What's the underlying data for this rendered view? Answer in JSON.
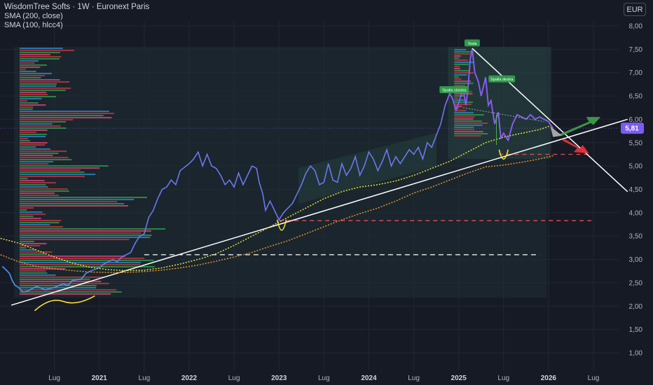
{
  "header": {
    "title": "WisdomTree Softs · 1W · Euronext Paris",
    "indicators": [
      "SMA (200, close)",
      "SMA (100, hlcc4)"
    ]
  },
  "currency_button": "EUR",
  "chart_data": {
    "type": "line",
    "symbol": "WisdomTree Softs",
    "interval": "1W",
    "exchange": "Euronext Paris",
    "currency": "EUR",
    "ylim": [
      0.62,
      8.3
    ],
    "yticks": [
      "8,00",
      "7,50",
      "7,00",
      "6,50",
      "6,00",
      "5,50",
      "5,00",
      "4,50",
      "4,00",
      "3,50",
      "3,00",
      "2,50",
      "2,00",
      "1,50",
      "1,00"
    ],
    "ytick_values": [
      8,
      7.5,
      7,
      6.5,
      6,
      5.5,
      5,
      4.5,
      4,
      3.5,
      3,
      2.5,
      2,
      1.5,
      1
    ],
    "xlim": [
      2019.9,
      2026.8
    ],
    "xticks": [
      {
        "label": "Lug",
        "t": 2020.5,
        "year": false
      },
      {
        "label": "2021",
        "t": 2021.0,
        "year": true
      },
      {
        "label": "Lug",
        "t": 2021.5,
        "year": false
      },
      {
        "label": "2022",
        "t": 2022.0,
        "year": true
      },
      {
        "label": "Lug",
        "t": 2022.5,
        "year": false
      },
      {
        "label": "2023",
        "t": 2023.0,
        "year": true
      },
      {
        "label": "Lug",
        "t": 2023.5,
        "year": false
      },
      {
        "label": "2024",
        "t": 2024.0,
        "year": true
      },
      {
        "label": "Lug",
        "t": 2024.5,
        "year": false
      },
      {
        "label": "2025",
        "t": 2025.0,
        "year": true
      },
      {
        "label": "Lug",
        "t": 2025.5,
        "year": false
      },
      {
        "label": "2026",
        "t": 2026.0,
        "year": true
      },
      {
        "label": "Lug",
        "t": 2026.5,
        "year": false
      }
    ],
    "current_price": "5,81",
    "current_value": 5.81,
    "series": [
      {
        "name": "WisdomTree Softs",
        "color": "#6a78ee",
        "points": [
          [
            2019.92,
            2.85
          ],
          [
            2019.95,
            2.8
          ],
          [
            2020.0,
            2.7
          ],
          [
            2020.03,
            2.55
          ],
          [
            2020.06,
            2.45
          ],
          [
            2020.1,
            2.4
          ],
          [
            2020.15,
            2.3
          ],
          [
            2020.2,
            2.32
          ],
          [
            2020.3,
            2.42
          ],
          [
            2020.4,
            2.35
          ],
          [
            2020.5,
            2.4
          ],
          [
            2020.6,
            2.48
          ],
          [
            2020.65,
            2.44
          ],
          [
            2020.7,
            2.55
          ],
          [
            2020.8,
            2.58
          ],
          [
            2020.85,
            2.7
          ],
          [
            2020.9,
            2.75
          ],
          [
            2021.0,
            2.82
          ],
          [
            2021.05,
            2.9
          ],
          [
            2021.1,
            2.95
          ],
          [
            2021.15,
            3.0
          ],
          [
            2021.2,
            2.95
          ],
          [
            2021.25,
            3.05
          ],
          [
            2021.35,
            3.15
          ],
          [
            2021.4,
            3.35
          ],
          [
            2021.45,
            3.5
          ],
          [
            2021.5,
            3.55
          ],
          [
            2021.55,
            3.9
          ],
          [
            2021.6,
            4.05
          ],
          [
            2021.65,
            4.3
          ],
          [
            2021.7,
            4.5
          ],
          [
            2021.75,
            4.55
          ],
          [
            2021.8,
            4.7
          ],
          [
            2021.85,
            4.6
          ],
          [
            2021.9,
            4.9
          ],
          [
            2022.0,
            5.05
          ],
          [
            2022.05,
            5.15
          ],
          [
            2022.1,
            5.3
          ],
          [
            2022.15,
            5.0
          ],
          [
            2022.2,
            5.25
          ],
          [
            2022.25,
            5.0
          ],
          [
            2022.3,
            4.95
          ],
          [
            2022.35,
            4.8
          ],
          [
            2022.4,
            4.6
          ],
          [
            2022.45,
            4.7
          ],
          [
            2022.5,
            4.55
          ],
          [
            2022.55,
            4.85
          ],
          [
            2022.6,
            4.6
          ],
          [
            2022.65,
            4.8
          ],
          [
            2022.7,
            5.0
          ],
          [
            2022.75,
            4.95
          ],
          [
            2022.78,
            4.65
          ],
          [
            2022.82,
            4.4
          ],
          [
            2022.85,
            4.05
          ],
          [
            2022.9,
            4.25
          ],
          [
            2022.95,
            4.05
          ],
          [
            2023.0,
            3.85
          ],
          [
            2023.05,
            4.0
          ],
          [
            2023.1,
            4.1
          ],
          [
            2023.15,
            4.2
          ],
          [
            2023.2,
            4.4
          ],
          [
            2023.25,
            4.6
          ],
          [
            2023.3,
            4.85
          ],
          [
            2023.35,
            5.0
          ],
          [
            2023.4,
            4.9
          ],
          [
            2023.45,
            4.6
          ],
          [
            2023.5,
            4.65
          ],
          [
            2023.55,
            5.05
          ],
          [
            2023.6,
            4.7
          ],
          [
            2023.65,
            4.65
          ],
          [
            2023.7,
            5.05
          ],
          [
            2023.75,
            4.8
          ],
          [
            2023.8,
            4.95
          ],
          [
            2023.85,
            5.2
          ],
          [
            2023.9,
            4.8
          ],
          [
            2023.95,
            5.0
          ],
          [
            2024.0,
            5.3
          ],
          [
            2024.05,
            5.15
          ],
          [
            2024.1,
            4.9
          ],
          [
            2024.15,
            5.1
          ],
          [
            2024.2,
            5.35
          ],
          [
            2024.25,
            5.0
          ],
          [
            2024.3,
            5.2
          ],
          [
            2024.35,
            5.05
          ],
          [
            2024.4,
            5.2
          ],
          [
            2024.45,
            5.35
          ],
          [
            2024.5,
            5.25
          ],
          [
            2024.55,
            5.4
          ],
          [
            2024.6,
            5.15
          ],
          [
            2024.65,
            5.5
          ],
          [
            2024.7,
            5.4
          ],
          [
            2024.75,
            5.65
          ],
          [
            2024.8,
            5.9
          ],
          [
            2024.85,
            6.3
          ],
          [
            2024.9,
            6.55
          ],
          [
            2024.93,
            6.45
          ],
          [
            2024.97,
            6.2
          ],
          [
            2025.0,
            6.35
          ],
          [
            2025.05,
            6.65
          ],
          [
            2025.08,
            6.3
          ],
          [
            2025.1,
            6.6
          ],
          [
            2025.13,
            7.3
          ],
          [
            2025.15,
            7.5
          ],
          [
            2025.18,
            7.0
          ],
          [
            2025.22,
            6.8
          ],
          [
            2025.25,
            6.5
          ],
          [
            2025.3,
            6.9
          ],
          [
            2025.33,
            6.3
          ],
          [
            2025.36,
            6.4
          ],
          [
            2025.4,
            5.9
          ],
          [
            2025.44,
            6.15
          ],
          [
            2025.47,
            5.6
          ],
          [
            2025.5,
            5.7
          ],
          [
            2025.55,
            5.55
          ],
          [
            2025.6,
            5.9
          ],
          [
            2025.65,
            6.1
          ],
          [
            2025.7,
            6.05
          ],
          [
            2025.75,
            6.0
          ],
          [
            2025.8,
            6.1
          ],
          [
            2025.85,
            6.0
          ],
          [
            2025.9,
            6.05
          ],
          [
            2025.95,
            6.0
          ],
          [
            2026.0,
            5.95
          ],
          [
            2026.05,
            5.81
          ]
        ]
      },
      {
        "name": "SMA (200, close)",
        "color": "#e2e23a",
        "points": [
          [
            2019.9,
            3.45
          ],
          [
            2020.1,
            3.35
          ],
          [
            2020.3,
            3.2
          ],
          [
            2020.5,
            3.05
          ],
          [
            2020.7,
            2.92
          ],
          [
            2020.9,
            2.83
          ],
          [
            2021.1,
            2.78
          ],
          [
            2021.3,
            2.76
          ],
          [
            2021.5,
            2.77
          ],
          [
            2021.7,
            2.82
          ],
          [
            2021.9,
            2.9
          ],
          [
            2022.1,
            3.0
          ],
          [
            2022.3,
            3.12
          ],
          [
            2022.5,
            3.3
          ],
          [
            2022.7,
            3.5
          ],
          [
            2022.9,
            3.7
          ],
          [
            2023.1,
            3.9
          ],
          [
            2023.3,
            4.1
          ],
          [
            2023.5,
            4.3
          ],
          [
            2023.7,
            4.45
          ],
          [
            2023.9,
            4.55
          ],
          [
            2024.1,
            4.6
          ],
          [
            2024.3,
            4.68
          ],
          [
            2024.5,
            4.8
          ],
          [
            2024.7,
            4.95
          ],
          [
            2024.9,
            5.1
          ],
          [
            2025.1,
            5.3
          ],
          [
            2025.3,
            5.5
          ],
          [
            2025.5,
            5.62
          ],
          [
            2025.7,
            5.7
          ],
          [
            2025.9,
            5.78
          ],
          [
            2026.05,
            5.88
          ]
        ]
      },
      {
        "name": "SMA (100, hlcc4)",
        "color": "#e8922a",
        "points": [
          [
            2019.9,
            3.1
          ],
          [
            2020.1,
            2.95
          ],
          [
            2020.3,
            2.85
          ],
          [
            2020.5,
            2.8
          ],
          [
            2020.7,
            2.76
          ],
          [
            2020.9,
            2.73
          ],
          [
            2021.1,
            2.72
          ],
          [
            2021.3,
            2.72
          ],
          [
            2021.5,
            2.74
          ],
          [
            2021.7,
            2.77
          ],
          [
            2021.9,
            2.82
          ],
          [
            2022.1,
            2.88
          ],
          [
            2022.3,
            2.96
          ],
          [
            2022.5,
            3.05
          ],
          [
            2022.7,
            3.15
          ],
          [
            2022.9,
            3.28
          ],
          [
            2023.1,
            3.4
          ],
          [
            2023.3,
            3.55
          ],
          [
            2023.5,
            3.7
          ],
          [
            2023.7,
            3.85
          ],
          [
            2023.9,
            3.98
          ],
          [
            2024.1,
            4.1
          ],
          [
            2024.3,
            4.25
          ],
          [
            2024.5,
            4.42
          ],
          [
            2024.7,
            4.55
          ],
          [
            2024.9,
            4.7
          ],
          [
            2025.1,
            4.85
          ],
          [
            2025.3,
            4.98
          ],
          [
            2025.5,
            5.02
          ],
          [
            2025.7,
            5.08
          ],
          [
            2025.9,
            5.15
          ],
          [
            2026.05,
            5.22
          ]
        ]
      }
    ],
    "annotations": [
      "Testa",
      "Spalla sinistra",
      "Spalla destra"
    ],
    "colors": {
      "background": "#161a25",
      "grid": "#232733",
      "price_line": "#6a78ee",
      "price_line_recent": "#8b5cf6",
      "sma200": "#e2e23a",
      "sma100": "#e8922a",
      "trendline": "#ffffff",
      "support_red": "#e14d57",
      "arrow_up": "#3fa34d",
      "arrow_down": "#e5323b",
      "label_green": "#2e9a4a",
      "current_price_bg": "#7b5cf0",
      "vp_blue": "#2c88c9",
      "vp_red": "#c5343e",
      "vp_green": "#2d9c4a",
      "vp_pink": "#e0407a"
    }
  }
}
